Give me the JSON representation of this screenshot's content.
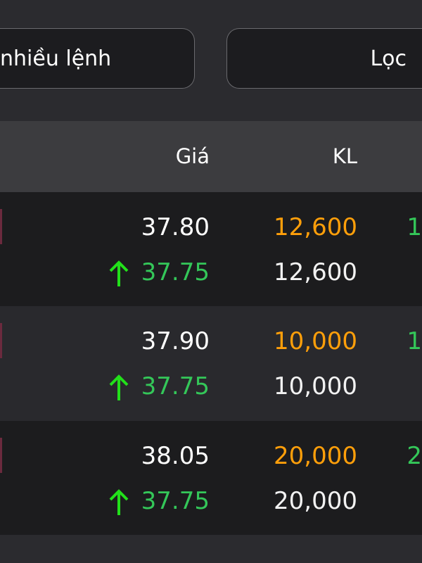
{
  "toolbar": {
    "multi_order_label": "nhiều lệnh",
    "filter_label": "Lọc"
  },
  "table": {
    "columns": {
      "price": "Giá",
      "volume": "KL"
    },
    "rows": [
      {
        "order_price": "37.80",
        "order_volume": "12,600",
        "matched_price": "37.75",
        "matched_volume": "12,600",
        "edge_text": "1",
        "trend": "up"
      },
      {
        "order_price": "37.90",
        "order_volume": "10,000",
        "matched_price": "37.75",
        "matched_volume": "10,000",
        "edge_text": "1",
        "trend": "up"
      },
      {
        "order_price": "38.05",
        "order_volume": "20,000",
        "matched_price": "37.75",
        "matched_volume": "20,000",
        "edge_text": "2",
        "trend": "up"
      }
    ]
  },
  "colors": {
    "up": "#34c759",
    "arrow": "#22e01a",
    "volume_highlight": "#ff9f0a",
    "background": "#1c1c1e"
  }
}
